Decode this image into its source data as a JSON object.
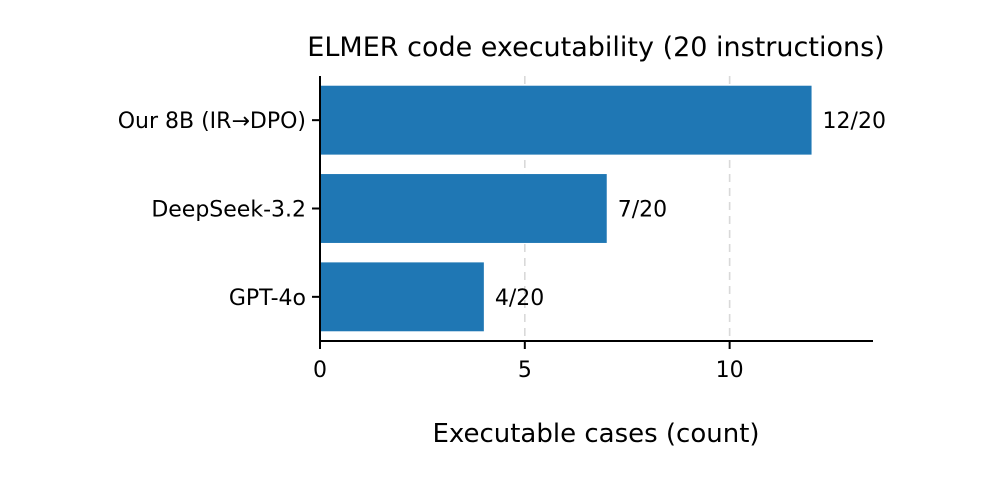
{
  "chart_data": {
    "type": "bar",
    "orientation": "horizontal",
    "title": "ELMER code executability (20 instructions)",
    "xlabel": "Executable cases (count)",
    "ylabel": "",
    "categories": [
      "Our 8B (IR→DPO)",
      "DeepSeek-3.2",
      "GPT-4o"
    ],
    "values": [
      12,
      7,
      4
    ],
    "data_labels": [
      "12/20",
      "7/20",
      "4/20"
    ],
    "xlim": [
      0,
      13.5
    ],
    "xticks": [
      0,
      5,
      10
    ],
    "xtick_labels": [
      "0",
      "5",
      "10"
    ],
    "grid": "x-dashed",
    "legend": "none",
    "bar_color": "#1f77b4"
  }
}
